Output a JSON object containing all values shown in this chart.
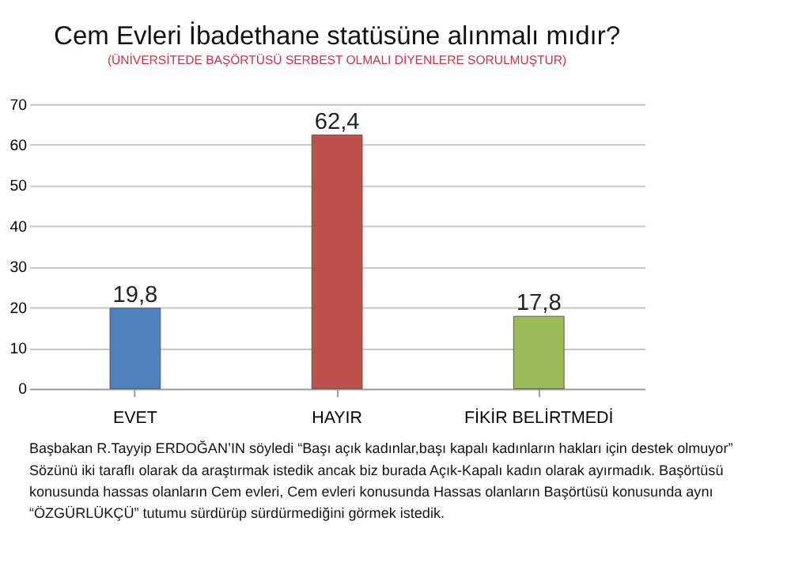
{
  "chart_data": {
    "type": "bar",
    "title": "Cem Evleri İbadethane statüsüne alınmalı mıdır?",
    "subtitle": "(ÜNİVERSİTEDE BAŞÖRTÜSÜ SERBEST OLMALI DİYENLERE SORULMUŞTUR)",
    "categories": [
      "EVET",
      "HAYIR",
      "FİKİR BELİRTMEDİ"
    ],
    "values": [
      19.8,
      62.4,
      17.8
    ],
    "value_labels": [
      "19,8",
      "62,4",
      "17,8"
    ],
    "colors": [
      "#4f81bd",
      "#c0504d",
      "#9bbb59"
    ],
    "ylim": [
      0,
      70
    ],
    "yticks": [
      0,
      10,
      20,
      30,
      40,
      50,
      60,
      70
    ],
    "grid": "y",
    "legend": false,
    "annotations": [
      "Başbakan R.Tayyip ERDOĞAN’IN söyledi “Başı açık kadınlar,başı kapalı kadınların hakları için destek olmuyor”",
      "Sözünü iki taraflı olarak da araştırmak istedik ancak biz burada Açık-Kapalı kadın olarak ayırmadık. Başörtüsü",
      "konusunda hassas olanların Cem evleri, Cem evleri konusunda Hassas olanların Başörtüsü konusunda aynı",
      "“ÖZGÜRLÜKÇÜ” tutumu sürdürüp sürdürmediğini görmek istedik."
    ]
  }
}
